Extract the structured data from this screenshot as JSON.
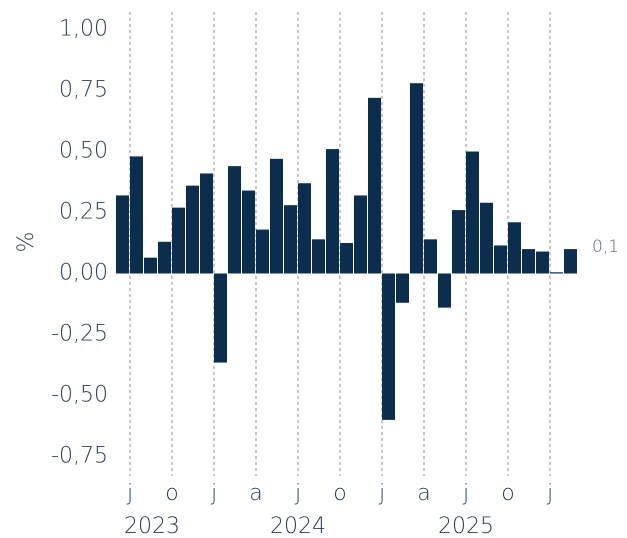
{
  "chart_data": {
    "type": "bar",
    "y_label": "%",
    "categories": [
      null,
      "j",
      null,
      null,
      "o",
      null,
      null,
      "j",
      null,
      null,
      "a",
      null,
      null,
      "j",
      null,
      null,
      "o",
      null,
      null,
      "j",
      null,
      null,
      "a",
      null,
      null,
      "j",
      null,
      null,
      "o",
      null,
      null,
      "j",
      null
    ],
    "values": [
      0.32,
      0.48,
      0.065,
      0.13,
      0.27,
      0.36,
      0.41,
      -0.365,
      0.44,
      0.34,
      0.18,
      0.47,
      0.28,
      0.37,
      0.14,
      0.51,
      0.125,
      0.32,
      0.72,
      -0.6,
      -0.12,
      0.78,
      0.14,
      -0.14,
      0.26,
      0.5,
      0.29,
      0.115,
      0.21,
      0.1,
      0.09,
      0.005,
      0.1
    ],
    "value_labels": [
      null,
      null,
      null,
      null,
      null,
      null,
      null,
      null,
      null,
      null,
      null,
      null,
      null,
      null,
      null,
      null,
      null,
      null,
      null,
      null,
      null,
      null,
      null,
      null,
      null,
      null,
      null,
      null,
      null,
      null,
      null,
      null,
      "0,1"
    ],
    "years": [
      "2023",
      "2024",
      "2025"
    ],
    "color": "#0b2e4f",
    "ylim": [
      -0.83,
      1.08
    ],
    "yticks": [
      {
        "value": -0.75,
        "label": "-0,75"
      },
      {
        "value": -0.5,
        "label": "-0,50"
      },
      {
        "value": -0.25,
        "label": "-0,25"
      },
      {
        "value": 0,
        "label": "0,00"
      },
      {
        "value": 0.25,
        "label": "0,25"
      },
      {
        "value": 0.5,
        "label": "0,50"
      },
      {
        "value": 0.75,
        "label": "0,75"
      },
      {
        "value": 1,
        "label": "1,00"
      }
    ]
  }
}
